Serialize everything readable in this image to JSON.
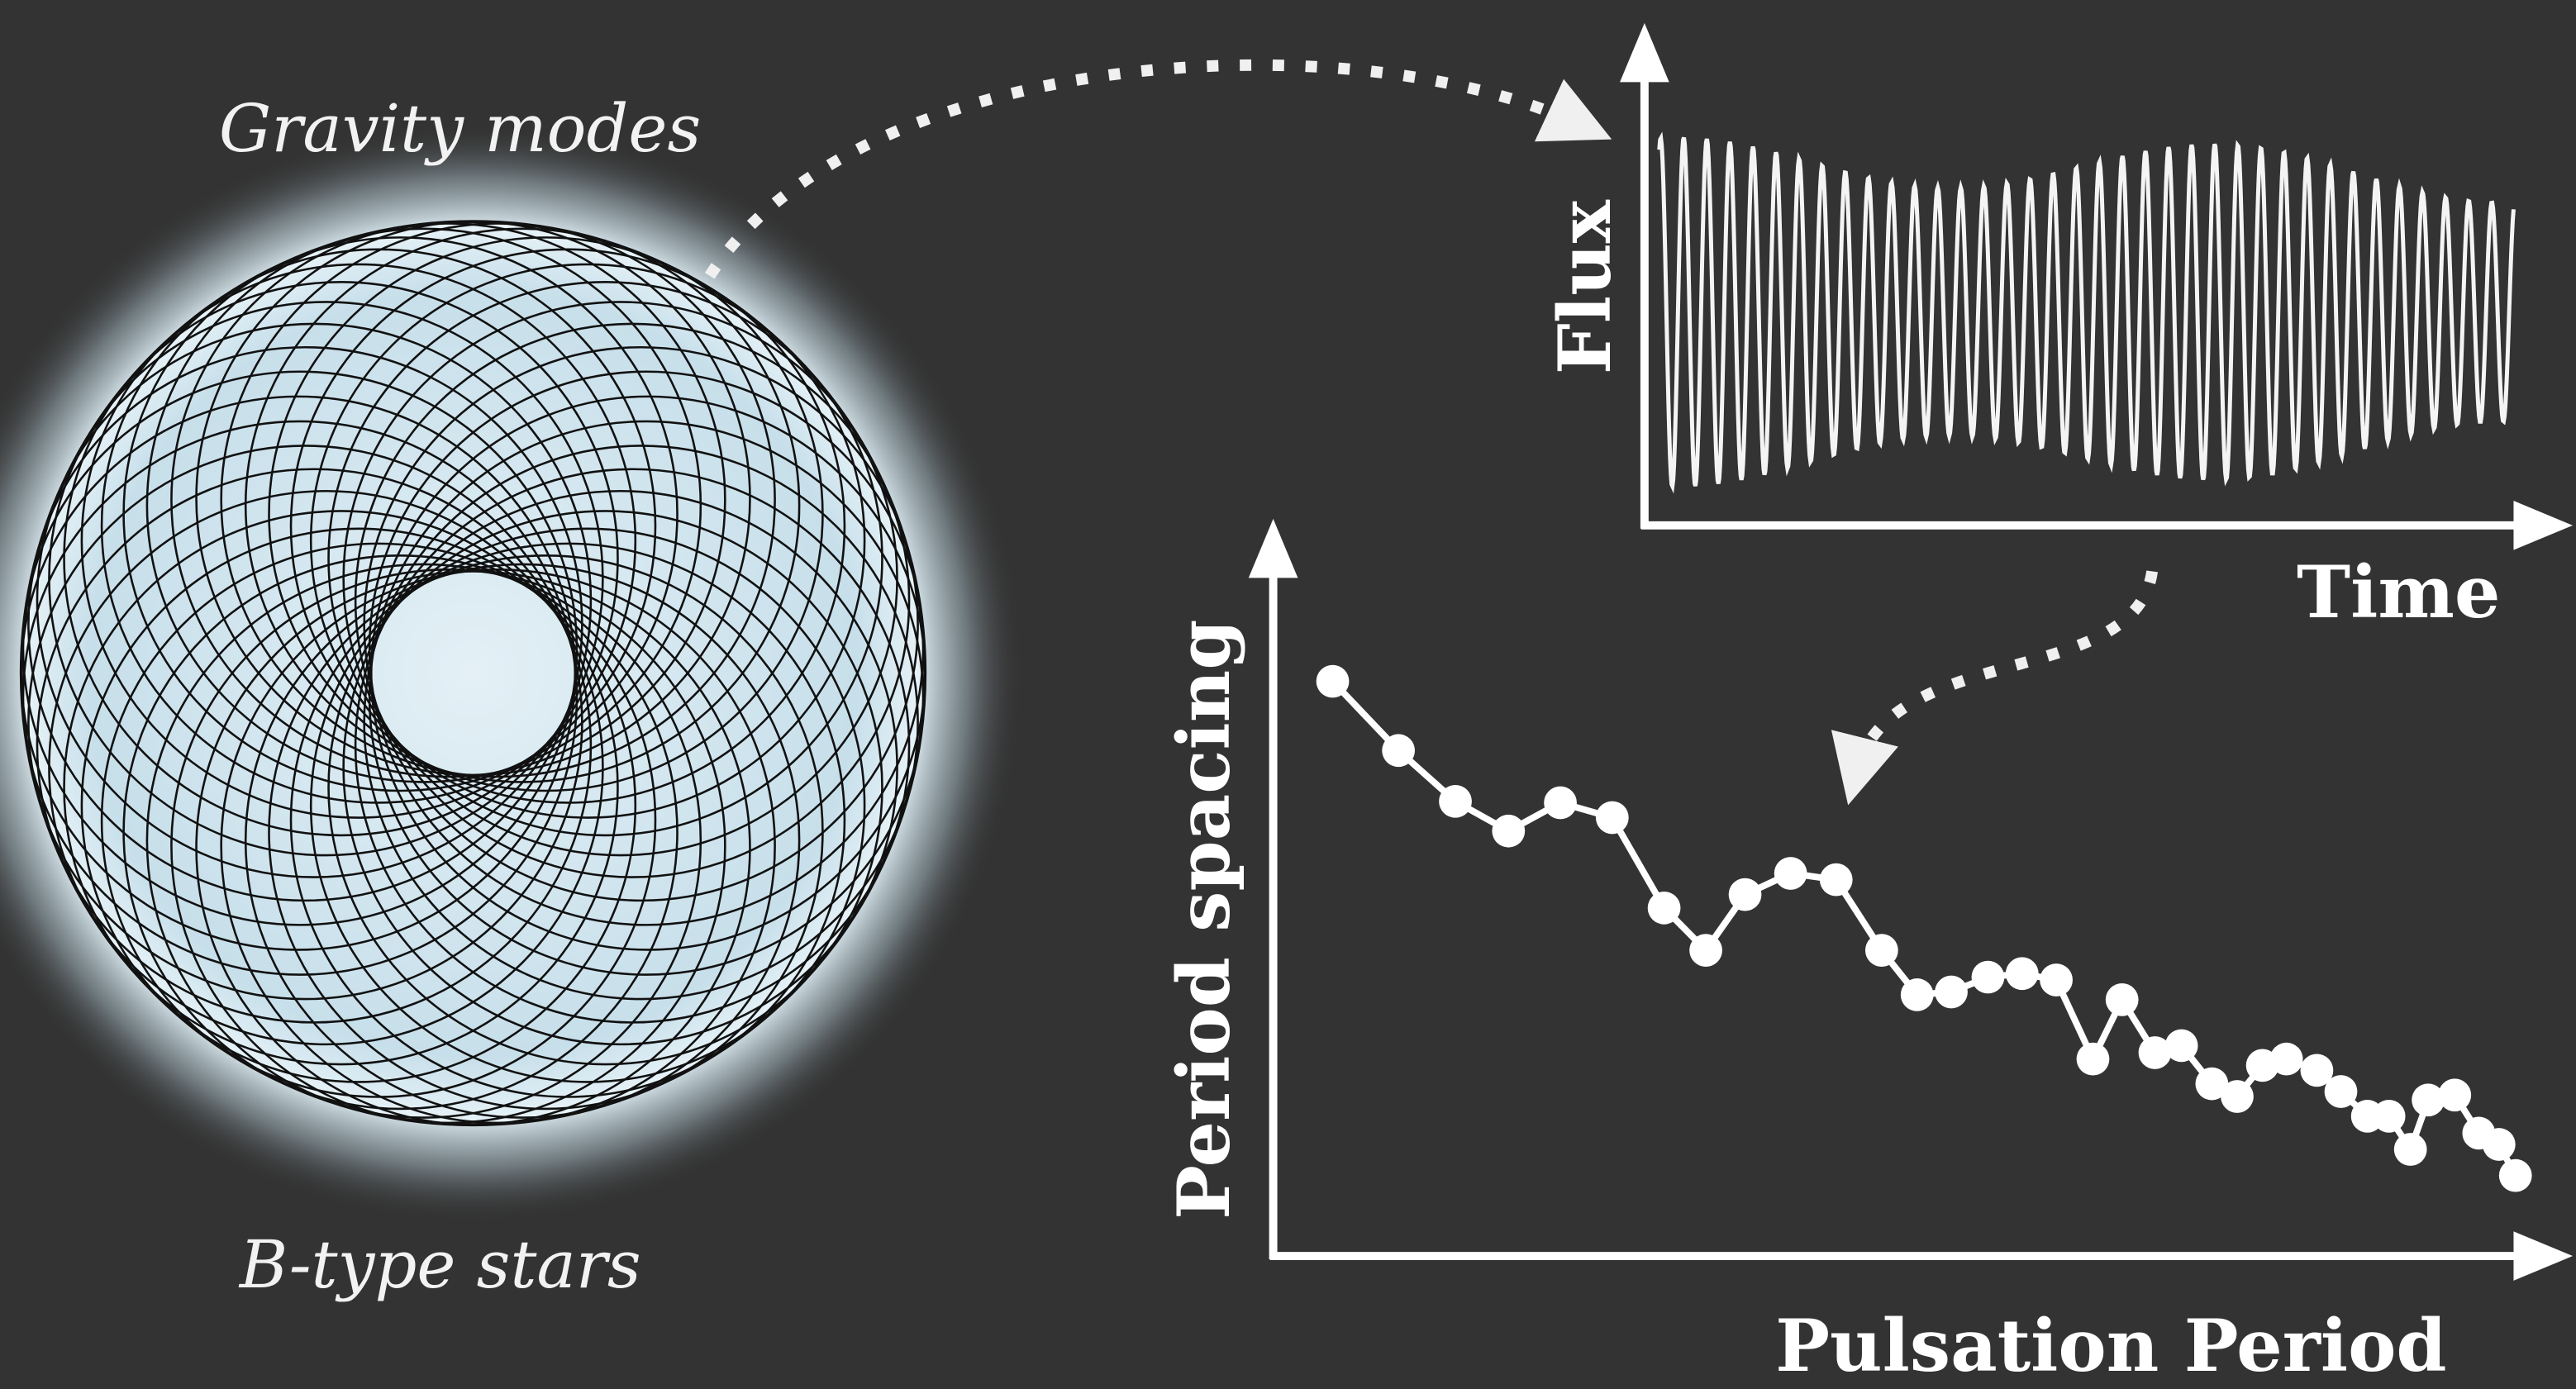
{
  "labels": {
    "star_top": "Gravity modes",
    "star_bottom": "B-type stars"
  },
  "flux_panel": {
    "y_label": "Flux",
    "x_label": "Time"
  },
  "chart_data": {
    "type": "line",
    "x_label": "Pulsation Period",
    "y_label": "Period spacing",
    "x": [
      4.7,
      9.9,
      14.4,
      18.6,
      22.7,
      26.8,
      30.9,
      34.2,
      37.3,
      40.9,
      44.5,
      48.1,
      50.9,
      53.6,
      56.5,
      59.2,
      61.9,
      64.8,
      67.1,
      69.7,
      71.8,
      74.2,
      76.2,
      78.2,
      80.1,
      82.5,
      84.4,
      86.5,
      88.2,
      89.9,
      91.3,
      93.4,
      95.3,
      96.9,
      98.2
    ],
    "values": [
      81.4,
      71.6,
      64.4,
      60.2,
      64.2,
      62.1,
      49.3,
      43.3,
      51.2,
      54.2,
      53.3,
      43.3,
      37.0,
      37.4,
      39.5,
      40.0,
      39.1,
      27.9,
      36.3,
      28.8,
      29.8,
      24.4,
      22.6,
      27.0,
      27.9,
      26.3,
      23.3,
      19.8,
      19.8,
      15.1,
      22.1,
      22.8,
      17.4,
      15.8,
      11.4
    ],
    "xlim": [
      0,
      100
    ],
    "ylim": [
      0,
      100
    ],
    "color": "#ffffff"
  }
}
